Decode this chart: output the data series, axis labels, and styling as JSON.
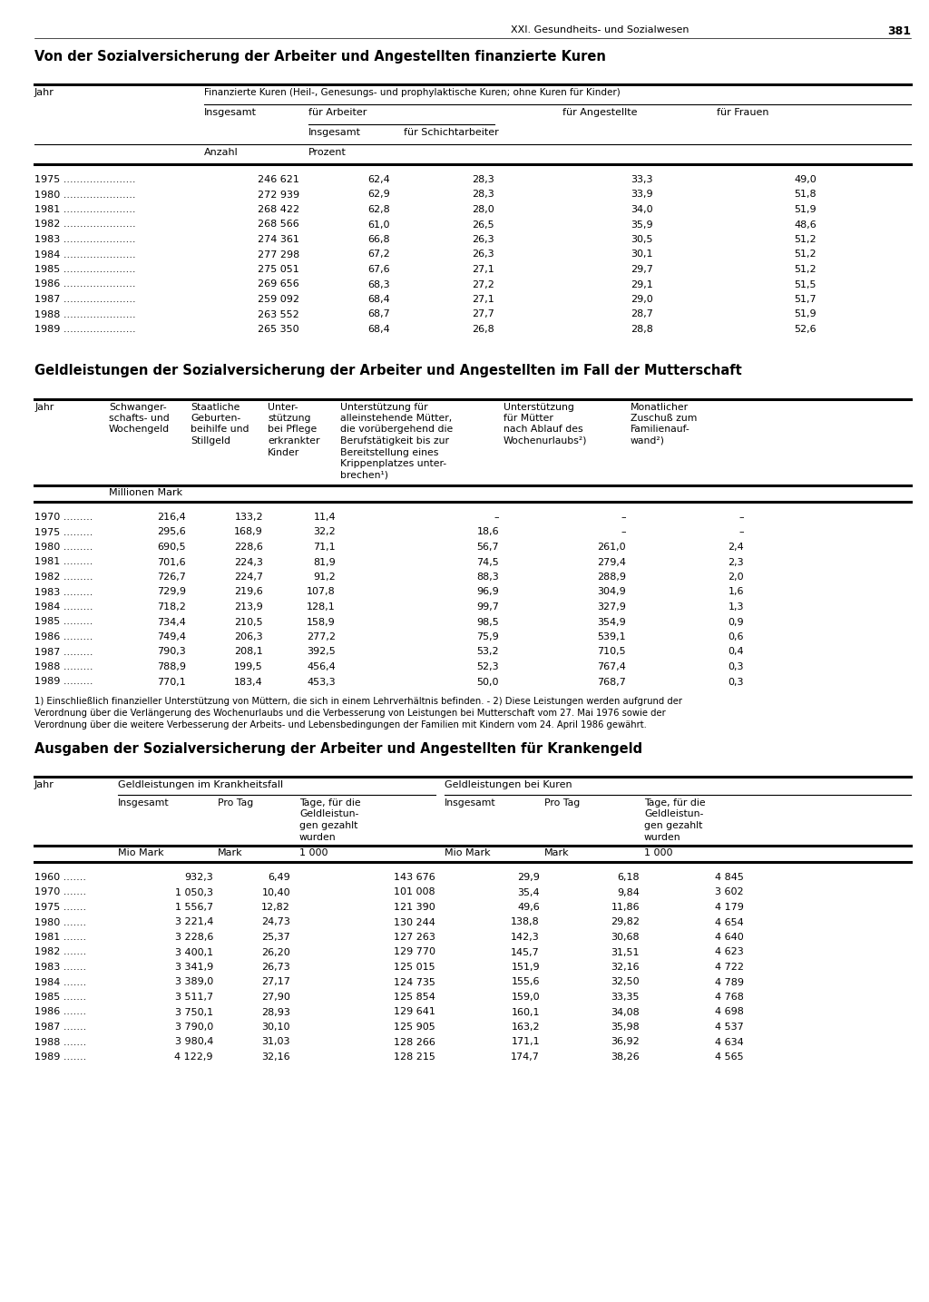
{
  "page_header": "XXI. Gesundheits- und Sozialwesen",
  "page_number": "381",
  "table1_title": "Von der Sozialversicherung der Arbeiter und Angestellten finanzierte Kuren",
  "table1_header_main": "Finanzierte Kuren (Heil-, Genesungs- und prophylaktische Kuren; ohne Kuren für Kinder)",
  "table1_data": [
    [
      "1975",
      "246 621",
      "62,4",
      "28,3",
      "33,3",
      "49,0"
    ],
    [
      "1980",
      "272 939",
      "62,9",
      "28,3",
      "33,9",
      "51,8"
    ],
    [
      "1981",
      "268 422",
      "62,8",
      "28,0",
      "34,0",
      "51,9"
    ],
    [
      "1982",
      "268 566",
      "61,0",
      "26,5",
      "35,9",
      "48,6"
    ],
    [
      "1983",
      "274 361",
      "66,8",
      "26,3",
      "30,5",
      "51,2"
    ],
    [
      "1984",
      "277 298",
      "67,2",
      "26,3",
      "30,1",
      "51,2"
    ],
    [
      "1985",
      "275 051",
      "67,6",
      "27,1",
      "29,7",
      "51,2"
    ],
    [
      "1986",
      "269 656",
      "68,3",
      "27,2",
      "29,1",
      "51,5"
    ],
    [
      "1987",
      "259 092",
      "68,4",
      "27,1",
      "29,0",
      "51,7"
    ],
    [
      "1988",
      "263 552",
      "68,7",
      "27,7",
      "28,7",
      "51,9"
    ],
    [
      "1989",
      "265 350",
      "68,4",
      "26,8",
      "28,8",
      "52,6"
    ]
  ],
  "table2_title": "Geldleistungen der Sozialversicherung der Arbeiter und Angestellten im Fall der Mutterschaft",
  "table2_data": [
    [
      "1970",
      "216,4",
      "133,2",
      "11,4",
      "–",
      "–",
      "–"
    ],
    [
      "1975",
      "295,6",
      "168,9",
      "32,2",
      "18,6",
      "–",
      "–"
    ],
    [
      "1980",
      "690,5",
      "228,6",
      "71,1",
      "56,7",
      "261,0",
      "2,4"
    ],
    [
      "1981",
      "701,6",
      "224,3",
      "81,9",
      "74,5",
      "279,4",
      "2,3"
    ],
    [
      "1982",
      "726,7",
      "224,7",
      "91,2",
      "88,3",
      "288,9",
      "2,0"
    ],
    [
      "1983",
      "729,9",
      "219,6",
      "107,8",
      "96,9",
      "304,9",
      "1,6"
    ],
    [
      "1984",
      "718,2",
      "213,9",
      "128,1",
      "99,7",
      "327,9",
      "1,3"
    ],
    [
      "1985",
      "734,4",
      "210,5",
      "158,9",
      "98,5",
      "354,9",
      "0,9"
    ],
    [
      "1986",
      "749,4",
      "206,3",
      "277,2",
      "75,9",
      "539,1",
      "0,6"
    ],
    [
      "1987",
      "790,3",
      "208,1",
      "392,5",
      "53,2",
      "710,5",
      "0,4"
    ],
    [
      "1988",
      "788,9",
      "199,5",
      "456,4",
      "52,3",
      "767,4",
      "0,3"
    ],
    [
      "1989",
      "770,1",
      "183,4",
      "453,3",
      "50,0",
      "768,7",
      "0,3"
    ]
  ],
  "table2_footnote1": "1) Einschließlich finanzieller Unterstützung von Müttern, die sich in einem Lehrverhältnis befinden. - 2) Diese Leistungen werden aufgrund der",
  "table2_footnote2": "Verordnung über die Verlängerung des Wochenurlaubs und die Verbesserung von Leistungen bei Mutterschaft vom 27. Mai 1976 sowie der",
  "table2_footnote3": "Verordnung über die weitere Verbesserung der Arbeits- und Lebensbedingungen der Familien mit Kindern vom 24. April 1986 gewährt.",
  "table3_title": "Ausgaben der Sozialversicherung der Arbeiter und Angestellten für Krankengeld",
  "table3_col_headers_group1": "Geldleistungen im Krankheitsfall",
  "table3_col_headers_group2": "Geldleistungen bei Kuren",
  "table3_units": [
    "Mio Mark",
    "Mark",
    "1 000",
    "Mio Mark",
    "Mark",
    "1 000"
  ],
  "table3_data": [
    [
      "1960",
      "932,3",
      "6,49",
      "143 676",
      "29,9",
      "6,18",
      "4 845"
    ],
    [
      "1970",
      "1 050,3",
      "10,40",
      "101 008",
      "35,4",
      "9,84",
      "3 602"
    ],
    [
      "1975",
      "1 556,7",
      "12,82",
      "121 390",
      "49,6",
      "11,86",
      "4 179"
    ],
    [
      "1980",
      "3 221,4",
      "24,73",
      "130 244",
      "138,8",
      "29,82",
      "4 654"
    ],
    [
      "1981",
      "3 228,6",
      "25,37",
      "127 263",
      "142,3",
      "30,68",
      "4 640"
    ],
    [
      "1982",
      "3 400,1",
      "26,20",
      "129 770",
      "145,7",
      "31,51",
      "4 623"
    ],
    [
      "1983",
      "3 341,9",
      "26,73",
      "125 015",
      "151,9",
      "32,16",
      "4 722"
    ],
    [
      "1984",
      "3 389,0",
      "27,17",
      "124 735",
      "155,6",
      "32,50",
      "4 789"
    ],
    [
      "1985",
      "3 511,7",
      "27,90",
      "125 854",
      "159,0",
      "33,35",
      "4 768"
    ],
    [
      "1986",
      "3 750,1",
      "28,93",
      "129 641",
      "160,1",
      "34,08",
      "4 698"
    ],
    [
      "1987",
      "3 790,0",
      "30,10",
      "125 905",
      "163,2",
      "35,98",
      "4 537"
    ],
    [
      "1988",
      "3 980,4",
      "31,03",
      "128 266",
      "171,1",
      "36,92",
      "4 634"
    ],
    [
      "1989",
      "4 122,9",
      "32,16",
      "128 215",
      "174,7",
      "38,26",
      "4 565"
    ]
  ]
}
